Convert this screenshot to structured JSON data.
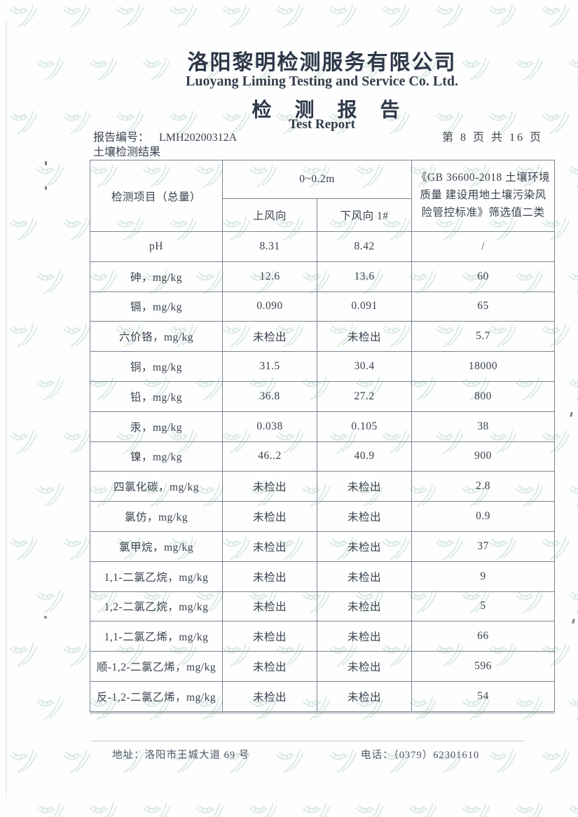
{
  "header": {
    "company_cn": "洛阳黎明检测服务有限公司",
    "company_en": "Luoyang Liming Testing and Service Co. Ltd.",
    "report_title_cn": "检 测 报 告",
    "report_title_en": "Test Report",
    "report_no_label": "报告编号：",
    "report_no": "LMH20200312A",
    "page_info": "第 8 页 共 16 页",
    "section_title": "土壤检测结果"
  },
  "table": {
    "item_header": "检测项目（总量）",
    "depth_header": "0~0.2m",
    "upwind_header": "上风向",
    "downwind_header": "下风向 1#",
    "standard_header": "《GB 36600-2018 土壤环境质量 建设用地土壤污染风险管控标准》筛选值二类",
    "rows": [
      {
        "item": "pH",
        "upwind": "8.31",
        "downwind": "8.42",
        "limit": "/"
      },
      {
        "item": "砷，mg/kg",
        "upwind": "12.6",
        "downwind": "13.6",
        "limit": "60"
      },
      {
        "item": "镉，mg/kg",
        "upwind": "0.090",
        "downwind": "0.091",
        "limit": "65"
      },
      {
        "item": "六价铬，mg/kg",
        "upwind": "未检出",
        "downwind": "未检出",
        "limit": "5.7"
      },
      {
        "item": "铜，mg/kg",
        "upwind": "31.5",
        "downwind": "30.4",
        "limit": "18000"
      },
      {
        "item": "铅，mg/kg",
        "upwind": "36.8",
        "downwind": "27.2",
        "limit": "800"
      },
      {
        "item": "汞，mg/kg",
        "upwind": "0.038",
        "downwind": "0.105",
        "limit": "38"
      },
      {
        "item": "镍，mg/kg",
        "upwind": "46..2",
        "downwind": "40.9",
        "limit": "900"
      },
      {
        "item": "四氯化碳，mg/kg",
        "upwind": "未检出",
        "downwind": "未检出",
        "limit": "2.8"
      },
      {
        "item": "氯仿，mg/kg",
        "upwind": "未检出",
        "downwind": "未检出",
        "limit": "0.9"
      },
      {
        "item": "氯甲烷，mg/kg",
        "upwind": "未检出",
        "downwind": "未检出",
        "limit": "37"
      },
      {
        "item": "1,1-二氯乙烷，mg/kg",
        "upwind": "未检出",
        "downwind": "未检出",
        "limit": "9"
      },
      {
        "item": "1,2-二氯乙烷，mg/kg",
        "upwind": "未检出",
        "downwind": "未检出",
        "limit": "5"
      },
      {
        "item": "1,1-二氯乙烯，mg/kg",
        "upwind": "未检出",
        "downwind": "未检出",
        "limit": "66"
      },
      {
        "item": "顺-1,2-二氯乙烯，mg/kg",
        "upwind": "未检出",
        "downwind": "未检出",
        "limit": "596"
      },
      {
        "item": "反-1,2-二氯乙烯，mg/kg",
        "upwind": "未检出",
        "downwind": "未检出",
        "limit": "54"
      }
    ]
  },
  "footer": {
    "address_label": "地址：",
    "address": "洛阳市王城大道 69 号",
    "phone_label": "电话：",
    "phone": "（0379）62301610"
  },
  "colors": {
    "watermark": "#c6dcd4",
    "text": "#39424f",
    "table_border": "#7a8494"
  }
}
